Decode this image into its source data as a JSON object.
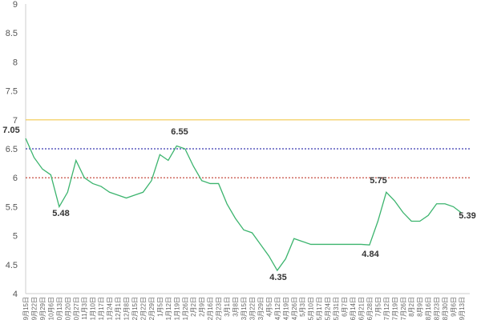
{
  "chart_data": {
    "type": "line",
    "categories": [
      "9月15日",
      "9月22日",
      "9月29日",
      "10月6日",
      "10月13日",
      "10月20日",
      "10月27日",
      "11月3日",
      "11月10日",
      "11月17日",
      "11月24日",
      "12月1日",
      "12月8日",
      "12月15日",
      "12月22日",
      "12月29日",
      "1月5日",
      "1月12日",
      "1月19日",
      "1月26日",
      "2月2日",
      "2月9日",
      "2月16日",
      "2月23日",
      "3月1日",
      "3月8日",
      "3月15日",
      "3月22日",
      "3月29日",
      "4月5日",
      "4月12日",
      "4月19日",
      "4月26日",
      "5月3日",
      "5月10日",
      "5月17日",
      "5月24日",
      "5月31日",
      "6月7日",
      "6月14日",
      "6月21日",
      "6月28日",
      "7月5日",
      "7月12日",
      "7月19日",
      "7月26日",
      "8月2日",
      "8月9日",
      "8月16日",
      "8月23日",
      "8月30日",
      "9月6日",
      "9月13日"
    ],
    "series": [
      {
        "color": "#3cb46e",
        "values": [
          6.68,
          6.35,
          6.15,
          6.05,
          5.5,
          5.75,
          6.3,
          6.0,
          5.9,
          5.85,
          5.75,
          5.7,
          5.65,
          5.7,
          5.75,
          5.95,
          6.4,
          6.3,
          6.55,
          6.5,
          6.2,
          5.95,
          5.9,
          5.9,
          5.55,
          5.3,
          5.1,
          5.05,
          4.85,
          4.65,
          4.4,
          4.6,
          4.95,
          4.9,
          4.85,
          4.85,
          4.85,
          4.85,
          4.85,
          4.85,
          4.85,
          4.84,
          5.25,
          5.75,
          5.6,
          5.4,
          5.25,
          5.25,
          5.35,
          5.55,
          5.55,
          5.5,
          5.39
        ]
      }
    ],
    "ylim": [
      4,
      9
    ],
    "yticks": [
      4,
      4.5,
      5,
      5.5,
      6,
      6.5,
      7,
      7.5,
      8,
      8.5,
      9
    ],
    "reference_lines": [
      {
        "value": 7,
        "color": "#f2c94c"
      },
      {
        "value": 6.5,
        "color": "#3b3bb0"
      },
      {
        "value": 6,
        "color": "#c0392b"
      }
    ],
    "annotations": [
      "7.05",
      "5.48",
      "6.55",
      "4.35",
      "5.75",
      "4.84",
      "5.39"
    ]
  }
}
